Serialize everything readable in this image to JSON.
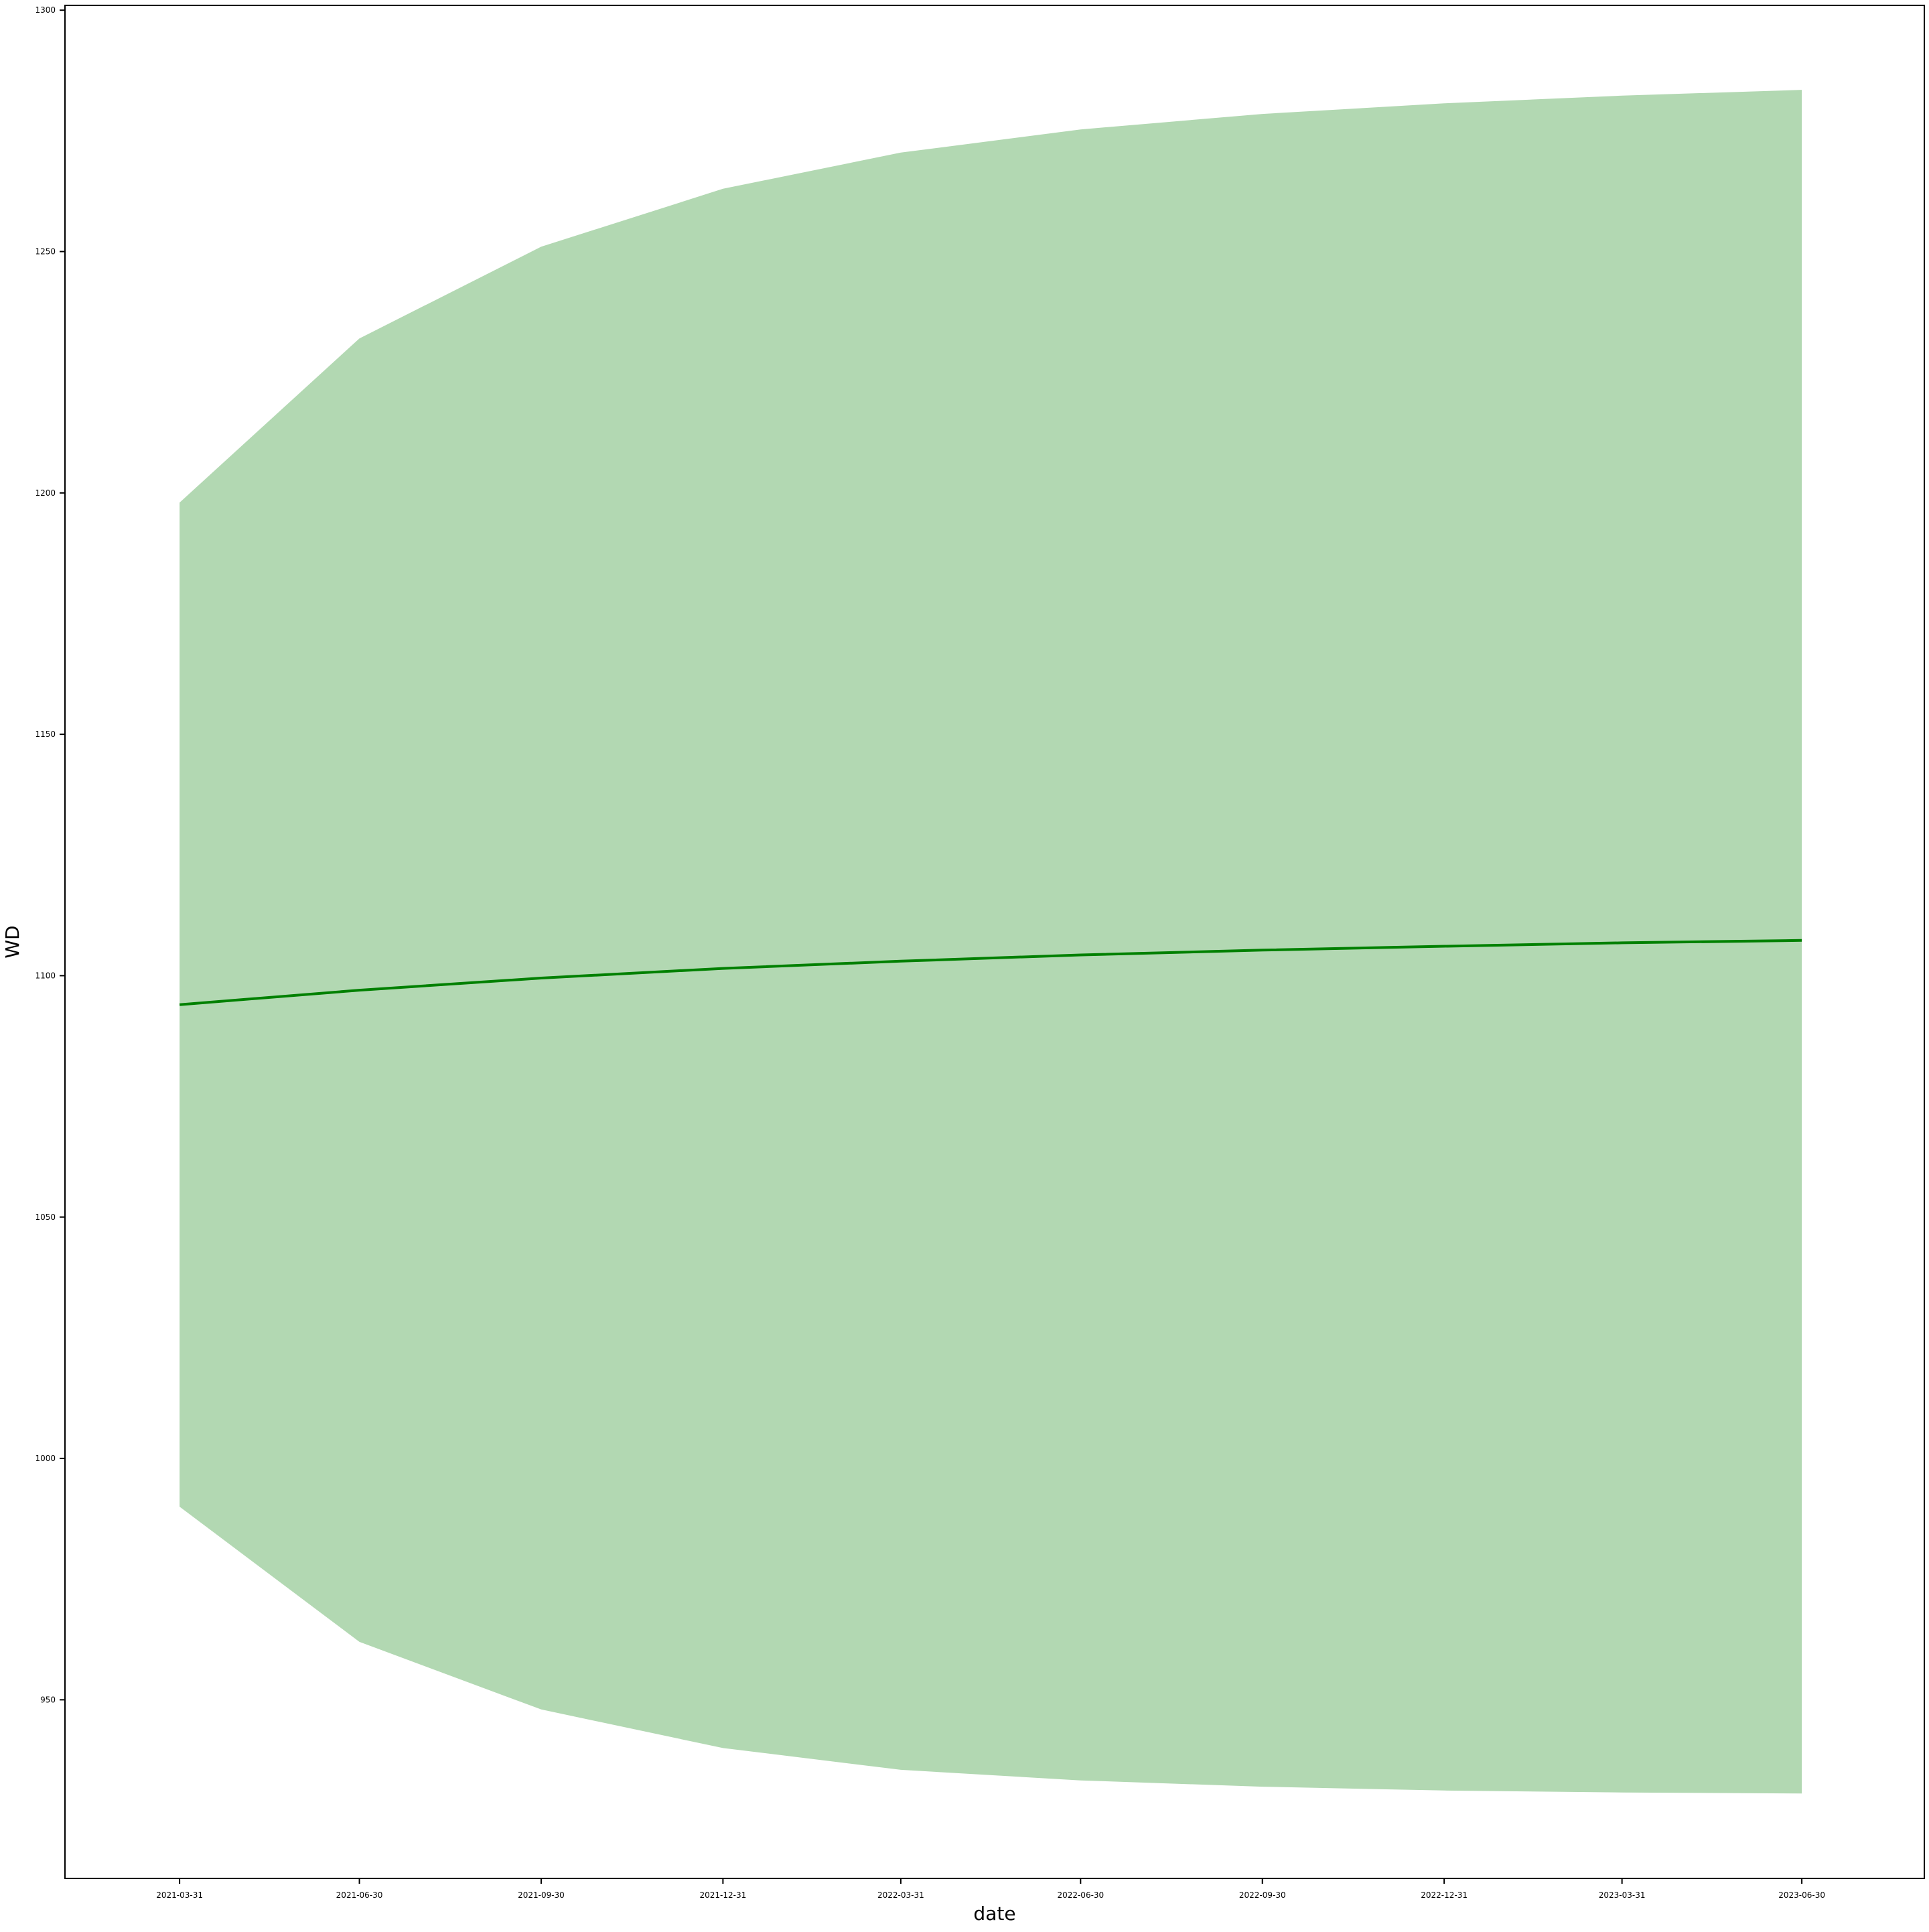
{
  "chart_data": {
    "type": "line",
    "title": "",
    "xlabel": "date",
    "ylabel": "WD",
    "x": [
      "2021-03-31",
      "2021-06-30",
      "2021-09-30",
      "2021-12-31",
      "2022-03-31",
      "2022-06-30",
      "2022-09-30",
      "2022-12-31",
      "2023-03-31",
      "2023-06-30"
    ],
    "series": [
      {
        "values": [
          1094,
          1097,
          1099.5,
          1101.5,
          1103,
          1104.3,
          1105.3,
          1106.1,
          1106.8,
          1107.3
        ],
        "lower": [
          990,
          962,
          948,
          940,
          935.5,
          933.3,
          932,
          931.2,
          930.8,
          930.6
        ],
        "upper": [
          1198,
          1232,
          1251,
          1263,
          1270.5,
          1275.3,
          1278.5,
          1280.7,
          1282.3,
          1283.5
        ],
        "color": "#008000",
        "band_color": "#b2d8b2"
      }
    ],
    "yticks": [
      950,
      1000,
      1050,
      1100,
      1150,
      1200,
      1250,
      1300
    ],
    "ylim": [
      913,
      1301
    ],
    "xlim": [
      "2021-02-01",
      "2023-08-31"
    ],
    "grid": false,
    "legend": "none"
  }
}
